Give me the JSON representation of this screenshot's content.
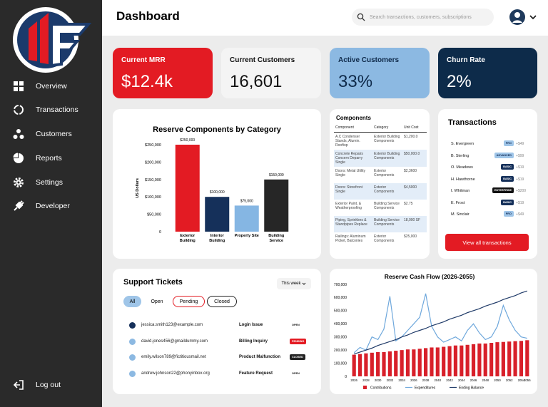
{
  "sidebar": {
    "nav": [
      "Overview",
      "Transactions",
      "Customers",
      "Reports",
      "Settings",
      "Developer"
    ],
    "logout": "Log out"
  },
  "header": {
    "title": "Dashboard",
    "search_placeholder": "Search transactions, customers, subscriptions"
  },
  "kpis": [
    {
      "label": "Current MRR",
      "value": "$12.4k"
    },
    {
      "label": "Current Customers",
      "value": "16,601"
    },
    {
      "label": "Active Customers",
      "value": "33%"
    },
    {
      "label": "Churn Rate",
      "value": "2%"
    }
  ],
  "components_table": {
    "title": "Components",
    "columns": [
      "Component",
      "Category",
      "Unit Cost"
    ],
    "rows": [
      [
        "A.C Condenser Stands, Alumin. Rooftop",
        "Exterior Building Components",
        "$1,200.0"
      ],
      [
        "Concrete Repairs Concern Deparry Single",
        "Exterior Building Components",
        "$50,000.0"
      ],
      [
        "Doors: Metal Utility Single",
        "Exterior Components",
        "$2,3600"
      ],
      [
        "Doors: Storefront Single",
        "Exterior Components",
        "$4,5000"
      ],
      [
        "Exterior Paint, & Weatherproofing",
        "Building Service Components",
        "$2.75"
      ],
      [
        "Piping, Sprinklers & Standpipes Replace",
        "Building Service Components",
        "18,000 SF"
      ],
      [
        "Railings: Aluminum Picket, Balconies",
        "Exterior Components",
        "$25,000"
      ]
    ]
  },
  "transactions": {
    "title": "Transactions",
    "items": [
      {
        "name": "S. Evergreen",
        "plan": "PRO",
        "amount": "+$49"
      },
      {
        "name": "B. Sterling",
        "plan": "ADVANCED",
        "amount": "+$99"
      },
      {
        "name": "O. Meadows",
        "plan": "BASIC",
        "amount": "+$19"
      },
      {
        "name": "H. Hawthorne",
        "plan": "BASIC",
        "amount": "+$19"
      },
      {
        "name": "I. Whitman",
        "plan": "ENTERPRISE",
        "amount": "+$200"
      },
      {
        "name": "E. Frost",
        "plan": "BASIC",
        "amount": "+$19"
      },
      {
        "name": "M. Sinclair",
        "plan": "PRO",
        "amount": "+$49"
      }
    ],
    "button": "View all transactions"
  },
  "support_tickets": {
    "title": "Support Tickets",
    "period": "This week",
    "filters": [
      "All",
      "Open",
      "Pending",
      "Closed"
    ],
    "rows": [
      {
        "email": "jessica.smith123@example.com",
        "issue": "Login Issue",
        "status": "OPEN"
      },
      {
        "email": "david.jones456@gmaildummy.com",
        "issue": "Billing Inquiry",
        "status": "PENDING"
      },
      {
        "email": "emily.wilson789@fictitiousmail.net",
        "issue": "Product Malfunction",
        "status": "CLOSED"
      },
      {
        "email": "andrew.johnson22@phonyinbox.org",
        "issue": "Feature Request",
        "status": "OPEN"
      }
    ]
  },
  "chart_data": [
    {
      "type": "bar",
      "title": "Reserve Components by Category",
      "y_label": "US Dollars",
      "categories": [
        "Exterior Building",
        "Interior Building",
        "Property Site",
        "Building Service"
      ],
      "values": [
        250000,
        100000,
        75000,
        150000
      ],
      "value_labels": [
        "$250,000",
        "$100,000",
        "$75,000",
        "$150,000"
      ],
      "colors": [
        "#e31b23",
        "#15305a",
        "#85b6e3",
        "#262626"
      ],
      "ylim": [
        0,
        250000
      ],
      "yticks": [
        0,
        {
          "value": 50000,
          "label": "$50,000"
        },
        {
          "value": 100000,
          "label": "$100,000"
        },
        {
          "value": 150000,
          "label": "$150,000"
        },
        {
          "value": 200000,
          "label": "$200,000"
        },
        {
          "value": 250000,
          "label": "$250,000"
        }
      ],
      "grid": false
    },
    {
      "type": "combo",
      "title": "Reserve Cash Flow (2026-2055)",
      "categories": [
        "2026",
        null,
        "2028",
        null,
        "2030",
        null,
        "2032",
        null,
        "2034",
        null,
        "2036",
        null,
        "2038",
        null,
        "2040",
        null,
        "2042",
        null,
        "2044",
        null,
        "2046",
        null,
        "2048",
        null,
        "2050",
        null,
        "2052",
        null,
        "2054",
        "2055"
      ],
      "series": [
        {
          "name": "Contributions",
          "type": "bar",
          "color": "#d8202a",
          "values": [
            165000,
            170000,
            175000,
            180000,
            185000,
            185000,
            190000,
            195000,
            200000,
            205000,
            205000,
            210000,
            215000,
            220000,
            220000,
            225000,
            230000,
            235000,
            235000,
            240000,
            245000,
            250000,
            250000,
            255000,
            260000,
            262000,
            265000,
            268000,
            270000,
            275000
          ]
        },
        {
          "name": "Expenditures",
          "type": "line",
          "color": "#6fa8dc",
          "values": [
            180000,
            220000,
            200000,
            300000,
            280000,
            360000,
            610000,
            270000,
            300000,
            350000,
            400000,
            450000,
            630000,
            380000,
            300000,
            260000,
            280000,
            300000,
            270000,
            350000,
            400000,
            330000,
            280000,
            300000,
            380000,
            540000,
            430000,
            350000,
            300000,
            290000
          ]
        },
        {
          "name": "Ending Balance",
          "type": "line",
          "color": "#1f3a68",
          "values": [
            170000,
            185000,
            200000,
            215000,
            235000,
            250000,
            265000,
            280000,
            300000,
            315000,
            335000,
            350000,
            365000,
            385000,
            400000,
            415000,
            435000,
            450000,
            465000,
            485000,
            500000,
            515000,
            535000,
            550000,
            565000,
            585000,
            600000,
            615000,
            635000,
            650000
          ]
        }
      ],
      "ylim": [
        0,
        700000
      ],
      "yticks": [
        0,
        {
          "value": 100000,
          "label": "100,000"
        },
        {
          "value": 200000,
          "label": "200,000"
        },
        {
          "value": 300000,
          "label": "300,000"
        },
        {
          "value": 400000,
          "label": "400,000"
        },
        {
          "value": 500000,
          "label": "500,000"
        },
        {
          "value": 600000,
          "label": "600,000"
        },
        {
          "value": 700000,
          "label": "700,000"
        }
      ],
      "grid": false
    }
  ]
}
